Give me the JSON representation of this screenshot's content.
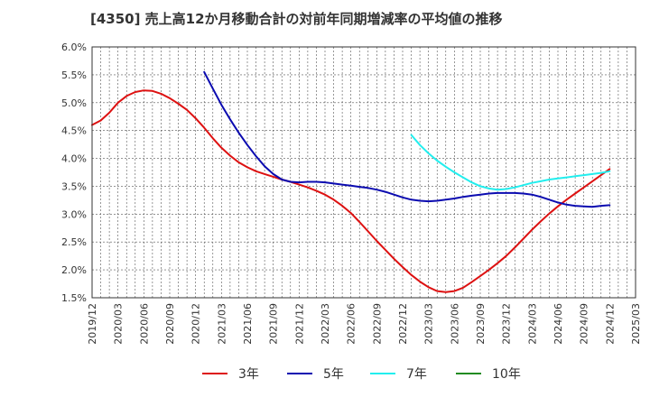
{
  "chart_data": {
    "type": "line",
    "title": "[4350]  売上高12か月移動合計の対前年同期増減率の平均値の推移",
    "y_ticks": [
      "6.0%",
      "5.5%",
      "5.0%",
      "4.5%",
      "4.0%",
      "3.5%",
      "3.0%",
      "2.5%",
      "2.0%",
      "1.5%"
    ],
    "ylim": [
      1.5,
      6.0
    ],
    "x_ticks": [
      "2019/12",
      "2020/03",
      "2020/06",
      "2020/09",
      "2020/12",
      "2021/03",
      "2021/06",
      "2021/09",
      "2021/12",
      "2022/03",
      "2022/06",
      "2022/09",
      "2022/12",
      "2023/03",
      "2023/06",
      "2023/09",
      "2023/12",
      "2024/03",
      "2024/06",
      "2024/09",
      "2024/12",
      "2025/03"
    ],
    "grid": true,
    "legend_position": "bottom",
    "series": [
      {
        "name": "3年",
        "color": "#dd1111",
        "x": [
          "2019/12",
          "2020/01",
          "2020/02",
          "2020/03",
          "2020/04",
          "2020/05",
          "2020/06",
          "2020/07",
          "2020/08",
          "2020/09",
          "2020/10",
          "2020/11",
          "2020/12",
          "2021/01",
          "2021/02",
          "2021/03",
          "2021/04",
          "2021/05",
          "2021/06",
          "2021/07",
          "2021/08",
          "2021/09",
          "2021/10",
          "2021/11",
          "2021/12",
          "2022/01",
          "2022/02",
          "2022/03",
          "2022/04",
          "2022/05",
          "2022/06",
          "2022/07",
          "2022/08",
          "2022/09",
          "2022/10",
          "2022/11",
          "2022/12",
          "2023/01",
          "2023/02",
          "2023/03",
          "2023/04",
          "2023/05",
          "2023/06",
          "2023/07",
          "2023/08",
          "2023/09",
          "2023/10",
          "2023/11",
          "2023/12",
          "2024/01",
          "2024/02",
          "2024/03",
          "2024/04",
          "2024/05",
          "2024/06",
          "2024/07",
          "2024/08",
          "2024/09",
          "2024/10",
          "2024/11",
          "2024/12"
        ],
        "values": [
          4.6,
          4.68,
          4.82,
          5.0,
          5.12,
          5.19,
          5.22,
          5.21,
          5.16,
          5.08,
          4.98,
          4.87,
          4.72,
          4.55,
          4.36,
          4.19,
          4.05,
          3.93,
          3.84,
          3.77,
          3.72,
          3.67,
          3.62,
          3.58,
          3.53,
          3.48,
          3.42,
          3.35,
          3.26,
          3.15,
          3.02,
          2.86,
          2.69,
          2.52,
          2.36,
          2.2,
          2.05,
          1.91,
          1.79,
          1.69,
          1.62,
          1.6,
          1.62,
          1.68,
          1.78,
          1.89,
          2.0,
          2.12,
          2.25,
          2.4,
          2.56,
          2.72,
          2.87,
          3.01,
          3.14,
          3.26,
          3.37,
          3.48,
          3.59,
          3.7,
          3.81
        ]
      },
      {
        "name": "5年",
        "color": "#0b0bb0",
        "x": [
          "2021/01",
          "2021/02",
          "2021/03",
          "2021/04",
          "2021/05",
          "2021/06",
          "2021/07",
          "2021/08",
          "2021/09",
          "2021/10",
          "2021/11",
          "2021/12",
          "2022/01",
          "2022/02",
          "2022/03",
          "2022/04",
          "2022/05",
          "2022/06",
          "2022/07",
          "2022/08",
          "2022/09",
          "2022/10",
          "2022/11",
          "2022/12",
          "2023/01",
          "2023/02",
          "2023/03",
          "2023/04",
          "2023/05",
          "2023/06",
          "2023/07",
          "2023/08",
          "2023/09",
          "2023/10",
          "2023/11",
          "2023/12",
          "2024/01",
          "2024/02",
          "2024/03",
          "2024/04",
          "2024/05",
          "2024/06",
          "2024/07",
          "2024/08",
          "2024/09",
          "2024/10",
          "2024/11",
          "2024/12"
        ],
        "values": [
          5.55,
          5.25,
          4.96,
          4.7,
          4.46,
          4.24,
          4.04,
          3.86,
          3.72,
          3.62,
          3.58,
          3.57,
          3.58,
          3.58,
          3.57,
          3.55,
          3.53,
          3.51,
          3.49,
          3.47,
          3.44,
          3.4,
          3.35,
          3.3,
          3.26,
          3.24,
          3.23,
          3.24,
          3.26,
          3.28,
          3.31,
          3.33,
          3.35,
          3.37,
          3.38,
          3.38,
          3.38,
          3.37,
          3.35,
          3.31,
          3.26,
          3.21,
          3.17,
          3.15,
          3.14,
          3.13,
          3.15,
          3.16
        ]
      },
      {
        "name": "7年",
        "color": "#22eeee",
        "x": [
          "2023/01",
          "2023/02",
          "2023/03",
          "2023/04",
          "2023/05",
          "2023/06",
          "2023/07",
          "2023/08",
          "2023/09",
          "2023/10",
          "2023/11",
          "2023/12",
          "2024/01",
          "2024/02",
          "2024/03",
          "2024/04",
          "2024/05",
          "2024/06",
          "2024/07",
          "2024/08",
          "2024/09",
          "2024/10",
          "2024/11",
          "2024/12"
        ],
        "values": [
          4.42,
          4.24,
          4.09,
          3.96,
          3.85,
          3.75,
          3.66,
          3.57,
          3.5,
          3.46,
          3.44,
          3.45,
          3.48,
          3.52,
          3.56,
          3.59,
          3.62,
          3.64,
          3.66,
          3.68,
          3.7,
          3.72,
          3.74,
          3.77
        ]
      },
      {
        "name": "10年",
        "color": "#228b22",
        "x": [],
        "values": []
      }
    ]
  }
}
